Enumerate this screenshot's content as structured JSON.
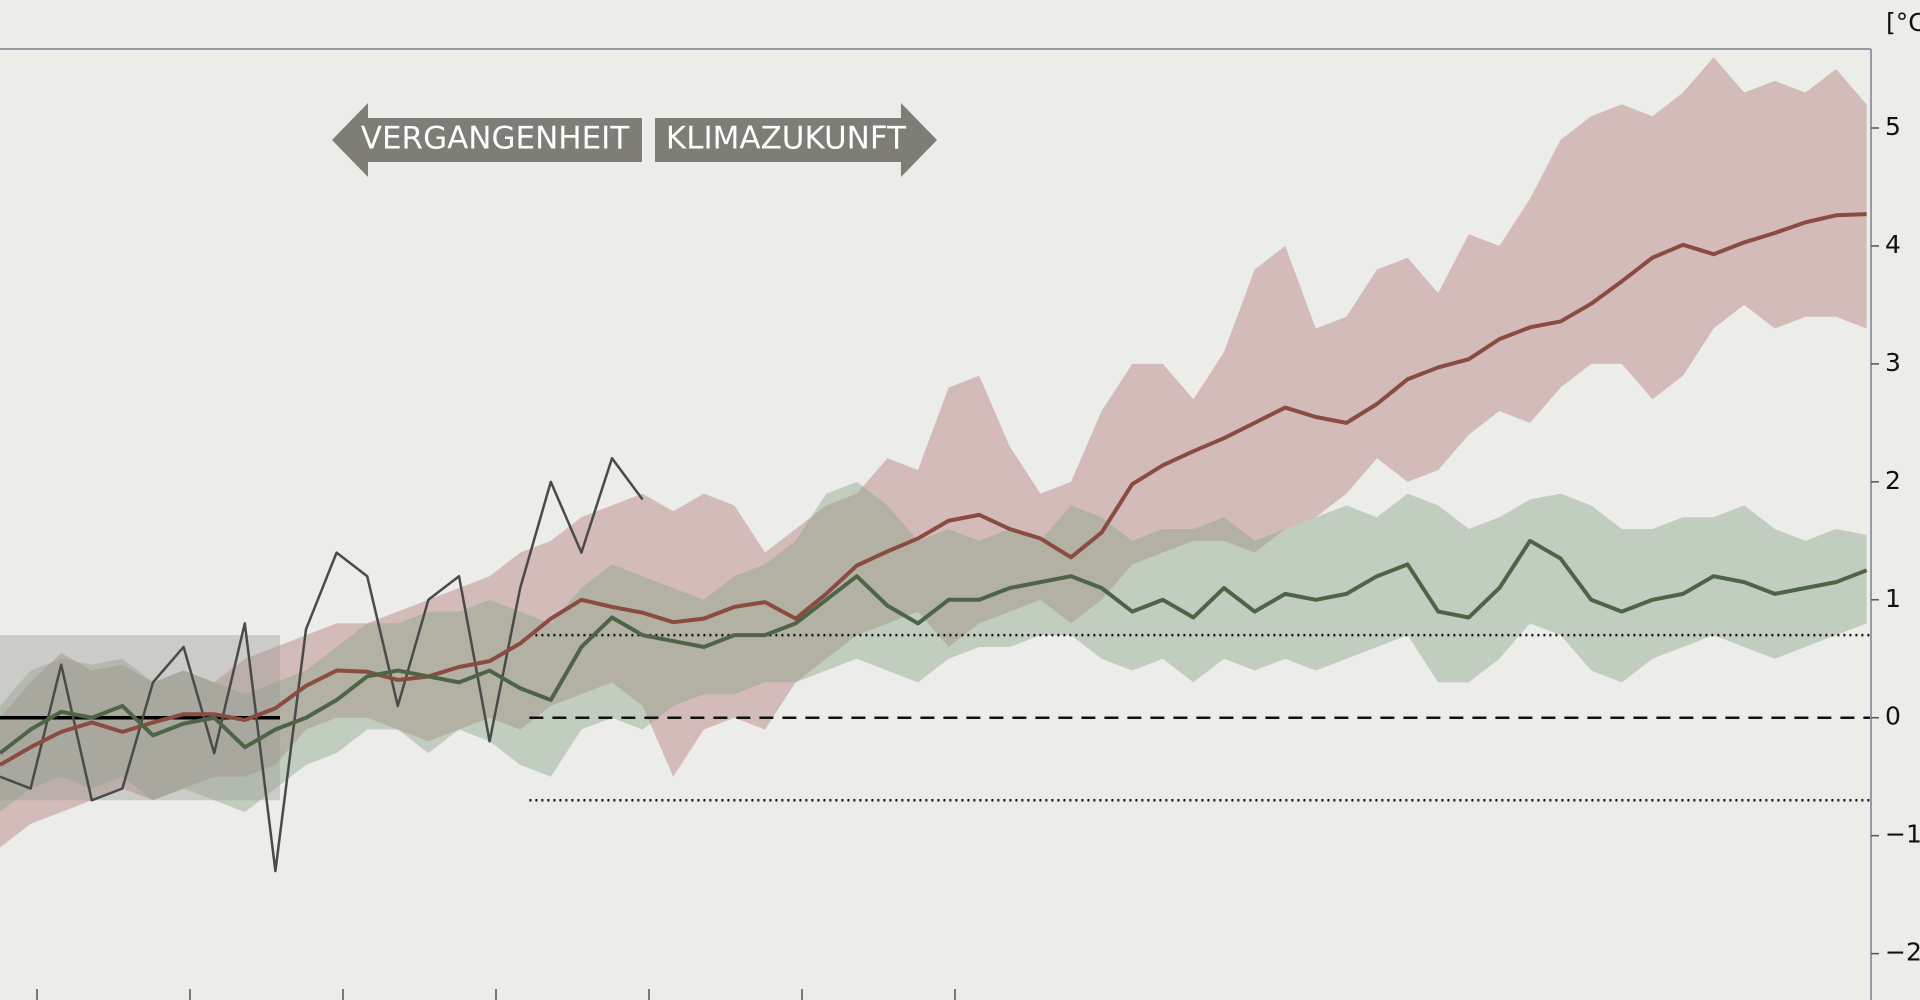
{
  "chart_data": {
    "type": "line",
    "unit_label": "[°C",
    "annotations": [
      "VERGANGENHEIT",
      "KLIMAZUKUNFT"
    ],
    "ylim": [
      -2.3,
      5.67
    ],
    "yticks": [
      {
        "value": -2,
        "label": "−2"
      },
      {
        "value": -1,
        "label": "−1"
      },
      0,
      1,
      2,
      3,
      4,
      5
    ],
    "baseline": 0,
    "range": [
      -0.7,
      0.7
    ],
    "series": [
      {
        "color": "#8a4b40",
        "band_color": "#b07878",
        "values": [
          -0.4,
          -0.25,
          -0.12,
          -0.04,
          -0.12,
          -0.04,
          0.03,
          0.03,
          -0.02,
          0.08,
          0.27,
          0.4,
          0.39,
          0.32,
          0.35,
          0.43,
          0.48,
          0.63,
          0.84,
          1.0,
          0.94,
          0.89,
          0.81,
          0.84,
          0.94,
          0.98,
          0.84,
          1.05,
          1.29,
          1.41,
          1.52,
          1.67,
          1.72,
          1.6,
          1.52,
          1.36,
          1.57,
          1.98,
          2.14,
          2.26,
          2.37,
          2.5,
          2.63,
          2.55,
          2.5,
          2.66,
          2.87,
          2.97,
          3.04,
          3.21,
          3.31,
          3.36,
          3.51,
          3.7,
          3.9,
          4.01,
          3.93,
          4.03,
          4.11,
          4.2,
          4.26,
          4.27
        ],
        "band_upper": [
          0.0,
          0.3,
          0.55,
          0.4,
          0.45,
          0.3,
          0.4,
          0.3,
          0.5,
          0.6,
          0.7,
          0.8,
          0.8,
          0.9,
          1.0,
          1.1,
          1.2,
          1.4,
          1.5,
          1.7,
          1.8,
          1.9,
          1.75,
          1.9,
          1.8,
          1.4,
          1.6,
          1.8,
          1.9,
          2.2,
          2.1,
          2.8,
          2.9,
          2.3,
          1.9,
          2.0,
          2.6,
          3.0,
          3.0,
          2.7,
          3.1,
          3.8,
          4.0,
          3.3,
          3.4,
          3.8,
          3.9,
          3.6,
          4.1,
          4.0,
          4.4,
          4.9,
          5.1,
          5.2,
          5.1,
          5.3,
          5.6,
          5.3,
          5.4,
          5.3,
          5.5,
          5.2
        ],
        "band_lower": [
          -1.1,
          -0.9,
          -0.8,
          -0.7,
          -0.6,
          -0.7,
          -0.6,
          -0.5,
          -0.5,
          -0.4,
          -0.1,
          0.0,
          0.0,
          -0.1,
          -0.2,
          -0.1,
          0.0,
          -0.1,
          0.1,
          0.2,
          0.3,
          0.1,
          -0.5,
          -0.1,
          0.0,
          -0.1,
          0.3,
          0.5,
          0.7,
          0.8,
          0.9,
          0.6,
          0.8,
          0.9,
          1.0,
          0.8,
          1.0,
          1.3,
          1.4,
          1.5,
          1.5,
          1.4,
          1.6,
          1.7,
          1.9,
          2.2,
          2.0,
          2.1,
          2.4,
          2.6,
          2.5,
          2.8,
          3.0,
          3.0,
          2.7,
          2.9,
          3.3,
          3.5,
          3.3,
          3.4,
          3.4,
          3.3
        ]
      },
      {
        "color": "#4e6446",
        "band_color": "#86a486",
        "values": [
          -0.3,
          -0.1,
          0.05,
          0.0,
          0.1,
          -0.15,
          -0.05,
          0.0,
          -0.25,
          -0.1,
          0.0,
          0.15,
          0.35,
          0.4,
          0.35,
          0.3,
          0.4,
          0.25,
          0.15,
          0.6,
          0.85,
          0.7,
          0.65,
          0.6,
          0.7,
          0.7,
          0.8,
          1.0,
          1.2,
          0.95,
          0.8,
          1.0,
          1.0,
          1.1,
          1.15,
          1.2,
          1.1,
          0.9,
          1.0,
          0.85,
          1.1,
          0.9,
          1.05,
          1.0,
          1.05,
          1.2,
          1.3,
          0.9,
          0.85,
          1.1,
          1.5,
          1.35,
          1.0,
          0.9,
          1.0,
          1.05,
          1.2,
          1.15,
          1.05,
          1.1,
          1.15,
          1.25
        ],
        "band_upper": [
          0.1,
          0.4,
          0.5,
          0.45,
          0.5,
          0.3,
          0.4,
          0.3,
          0.2,
          0.3,
          0.4,
          0.6,
          0.8,
          0.8,
          0.9,
          0.9,
          1.0,
          0.9,
          0.8,
          1.1,
          1.3,
          1.2,
          1.1,
          1.0,
          1.2,
          1.3,
          1.5,
          1.9,
          2.0,
          1.8,
          1.5,
          1.6,
          1.5,
          1.6,
          1.5,
          1.8,
          1.7,
          1.5,
          1.6,
          1.6,
          1.7,
          1.5,
          1.6,
          1.7,
          1.8,
          1.7,
          1.9,
          1.8,
          1.6,
          1.7,
          1.85,
          1.9,
          1.8,
          1.6,
          1.6,
          1.7,
          1.7,
          1.8,
          1.6,
          1.5,
          1.6,
          1.55
        ],
        "band_lower": [
          -0.8,
          -0.6,
          -0.5,
          -0.6,
          -0.5,
          -0.7,
          -0.6,
          -0.7,
          -0.8,
          -0.6,
          -0.4,
          -0.3,
          -0.1,
          -0.1,
          -0.3,
          -0.1,
          -0.2,
          -0.4,
          -0.5,
          -0.1,
          0.0,
          -0.1,
          0.1,
          0.2,
          0.2,
          0.3,
          0.3,
          0.4,
          0.5,
          0.4,
          0.3,
          0.5,
          0.6,
          0.6,
          0.7,
          0.7,
          0.5,
          0.4,
          0.5,
          0.3,
          0.5,
          0.4,
          0.5,
          0.4,
          0.5,
          0.6,
          0.7,
          0.3,
          0.3,
          0.5,
          0.8,
          0.7,
          0.4,
          0.3,
          0.5,
          0.6,
          0.7,
          0.6,
          0.5,
          0.6,
          0.7,
          0.8
        ]
      },
      {
        "color": "#4a4a4a",
        "values": [
          -0.5,
          -0.6,
          0.45,
          -0.7,
          -0.6,
          0.3,
          0.6,
          -0.3,
          0.8,
          -1.3,
          0.75,
          1.4,
          1.2,
          0.1,
          1.0,
          1.2,
          -0.2,
          1.1,
          2.0,
          1.4,
          2.2,
          1.85,
          null,
          null,
          null,
          null,
          null,
          null,
          null,
          null,
          null,
          null,
          null,
          null,
          null,
          null,
          null,
          null,
          null,
          null,
          null,
          null,
          null,
          null,
          null,
          null,
          null,
          null,
          null,
          null,
          null,
          null,
          null,
          null,
          null,
          null,
          null,
          null,
          null,
          null,
          null,
          null
        ]
      }
    ]
  }
}
